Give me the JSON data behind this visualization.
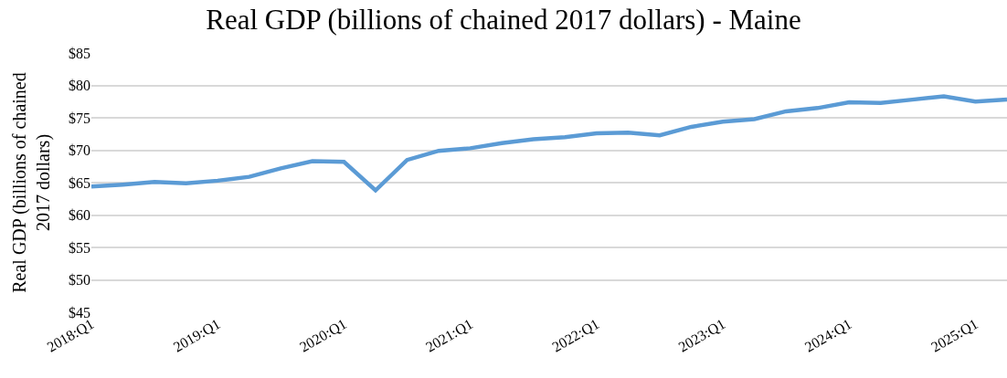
{
  "chart_data": {
    "type": "line",
    "title": "Real GDP (billions of chained 2017 dollars) - Maine",
    "ylabel": "Real GDP (billions of chained 2017 dollars)",
    "categories": [
      "2018:Q1",
      null,
      null,
      null,
      "2019:Q1",
      null,
      null,
      null,
      "2020:Q1",
      null,
      null,
      null,
      "2021:Q1",
      null,
      null,
      null,
      "2022:Q1",
      null,
      null,
      null,
      "2023:Q1",
      null,
      null,
      null,
      "2024:Q1",
      null,
      null,
      null,
      "2025:Q1",
      null
    ],
    "series": [
      {
        "color": "#5b9bd5",
        "values": [
          64.4,
          64.7,
          65.1,
          64.9,
          65.3,
          65.9,
          67.2,
          68.3,
          68.2,
          63.8,
          68.5,
          69.9,
          70.3,
          71.1,
          71.7,
          72.0,
          72.6,
          72.7,
          72.3,
          73.6,
          74.4,
          74.8,
          76.0,
          76.5,
          77.4,
          77.3,
          77.8,
          78.3,
          77.5,
          77.8
        ]
      }
    ],
    "ylim": [
      45,
      85
    ],
    "yticks": [
      {
        "value": 45,
        "label": "$45"
      },
      {
        "value": 50,
        "label": "$50"
      },
      {
        "value": 55,
        "label": "$55"
      },
      {
        "value": 60,
        "label": "$60"
      },
      {
        "value": 65,
        "label": "$65"
      },
      {
        "value": 70,
        "label": "$70"
      },
      {
        "value": 75,
        "label": "$75"
      },
      {
        "value": 80,
        "label": "$80"
      },
      {
        "value": 85,
        "label": "$85"
      }
    ],
    "grid": "y",
    "legend": false,
    "marker": "none",
    "line_style": "solid"
  }
}
